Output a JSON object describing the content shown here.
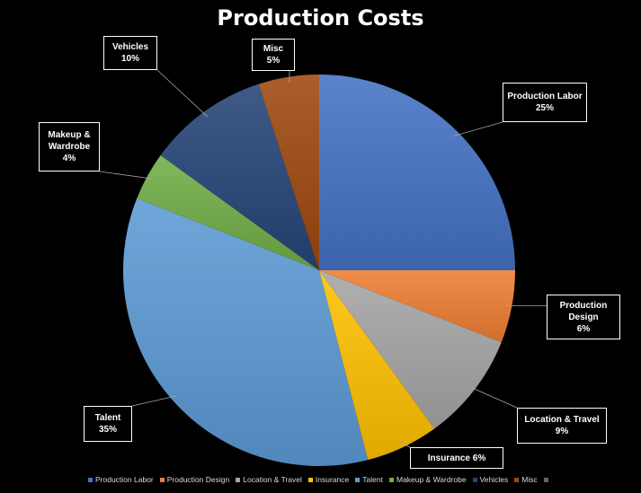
{
  "chart_data": {
    "type": "pie",
    "title": "Production Costs",
    "series": [
      {
        "name": "Production Labor",
        "label": "Production Labor",
        "value_label": "25%",
        "value": 25,
        "color": "#4472c4"
      },
      {
        "name": "Production Design",
        "label": "Production Design",
        "value_label": "6%",
        "value": 6,
        "color": "#ed7d31"
      },
      {
        "name": "Location & Travel",
        "label": "Location & Travel",
        "value_label": "9%",
        "value": 9,
        "color": "#a5a5a5"
      },
      {
        "name": "Insurance",
        "label": "Insurance",
        "value_label": "6%",
        "value": 6,
        "color": "#ffc000"
      },
      {
        "name": "Talent",
        "label": "Talent",
        "value_label": "35%",
        "value": 35,
        "color": "#5b9bd5"
      },
      {
        "name": "Makeup & Wardrobe",
        "label": "Makeup & Wardrobe",
        "value_label": "4%",
        "value": 4,
        "color": "#70ad47"
      },
      {
        "name": "Vehicles",
        "label": "Vehicles",
        "value_label": "10%",
        "value": 10,
        "color": "#264478"
      },
      {
        "name": "Misc",
        "label": "Misc",
        "value_label": "5%",
        "value": 5,
        "color": "#9e480e"
      }
    ],
    "legend": {
      "position": "bottom",
      "items": [
        "Production Labor",
        "Production Design",
        "Location & Travel",
        "Insurance",
        "Talent",
        "Makeup & Wardrobe",
        "Vehicles",
        "Misc",
        ""
      ],
      "colors": [
        "#4472c4",
        "#ed7d31",
        "#a5a5a5",
        "#ffc000",
        "#5b9bd5",
        "#70ad47",
        "#264478",
        "#9e480e",
        "#636363"
      ]
    }
  }
}
